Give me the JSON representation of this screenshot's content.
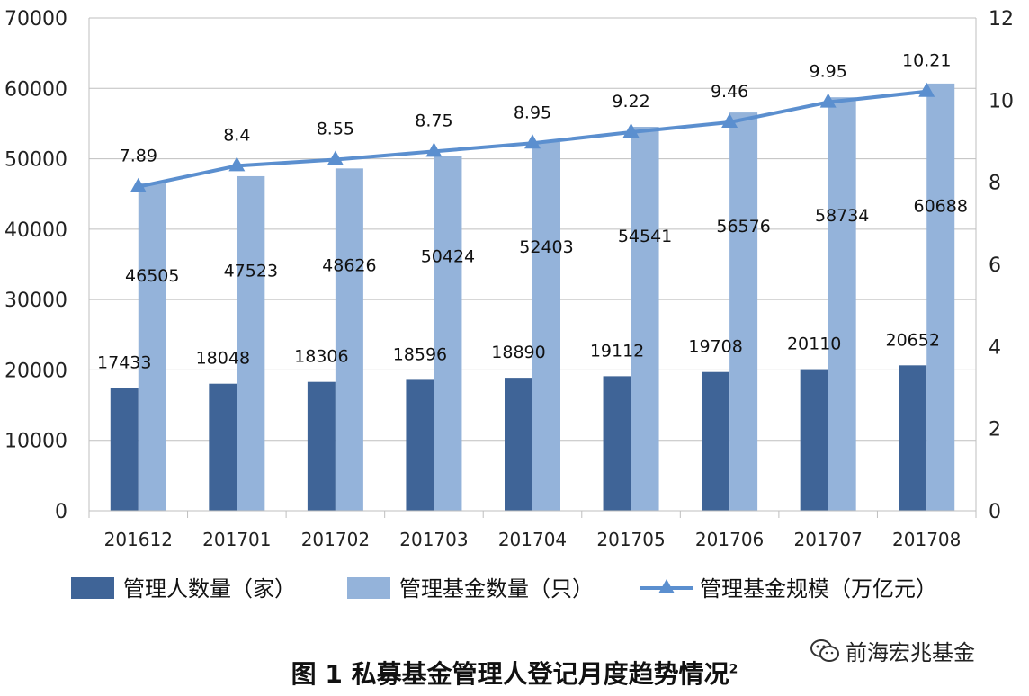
{
  "chart_data": {
    "type": "bar",
    "categories": [
      "201612",
      "201701",
      "201702",
      "201703",
      "201704",
      "201705",
      "201706",
      "201707",
      "201708"
    ],
    "series": [
      {
        "name": "管理人数量（家）",
        "type": "bar",
        "axis": "left",
        "color": "#3f6497",
        "values": [
          17433,
          18048,
          18306,
          18596,
          18890,
          19112,
          19708,
          20110,
          20652
        ]
      },
      {
        "name": "管理基金数量（只）",
        "type": "bar",
        "axis": "left",
        "color": "#94b3da",
        "values": [
          46505,
          47523,
          48626,
          50424,
          52403,
          54541,
          56576,
          58734,
          60688
        ]
      },
      {
        "name": "管理基金规模（万亿元）",
        "type": "line",
        "axis": "right",
        "color": "#5b8fcf",
        "values": [
          7.89,
          8.4,
          8.55,
          8.75,
          8.95,
          9.22,
          9.46,
          9.95,
          10.21
        ]
      }
    ],
    "value_labels": {
      "s0": [
        "17433",
        "18048",
        "18306",
        "18596",
        "18890",
        "19112",
        "19708",
        "20110",
        "20652"
      ],
      "s1": [
        "46505",
        "47523",
        "48626",
        "50424",
        "52403",
        "54541",
        "56576",
        "58734",
        "60688"
      ],
      "s2": [
        "7.89",
        "8.4",
        "8.55",
        "8.75",
        "8.95",
        "9.22",
        "9.46",
        "9.95",
        "10.21"
      ]
    },
    "ylim_left": [
      0,
      70000
    ],
    "yticks_left": [
      "0",
      "10000",
      "20000",
      "30000",
      "40000",
      "50000",
      "60000",
      "70000"
    ],
    "ylim_right": [
      0,
      12
    ],
    "yticks_right": [
      "0",
      "2",
      "4",
      "6",
      "8",
      "10",
      "12"
    ],
    "grid": true,
    "legend_position": "bottom"
  },
  "title": {
    "main": "图 1  私募基金管理人登记月度趋势情况",
    "superscript": "2"
  },
  "watermark": {
    "text": "前海宏兆基金",
    "icon": "wechat-icon"
  }
}
